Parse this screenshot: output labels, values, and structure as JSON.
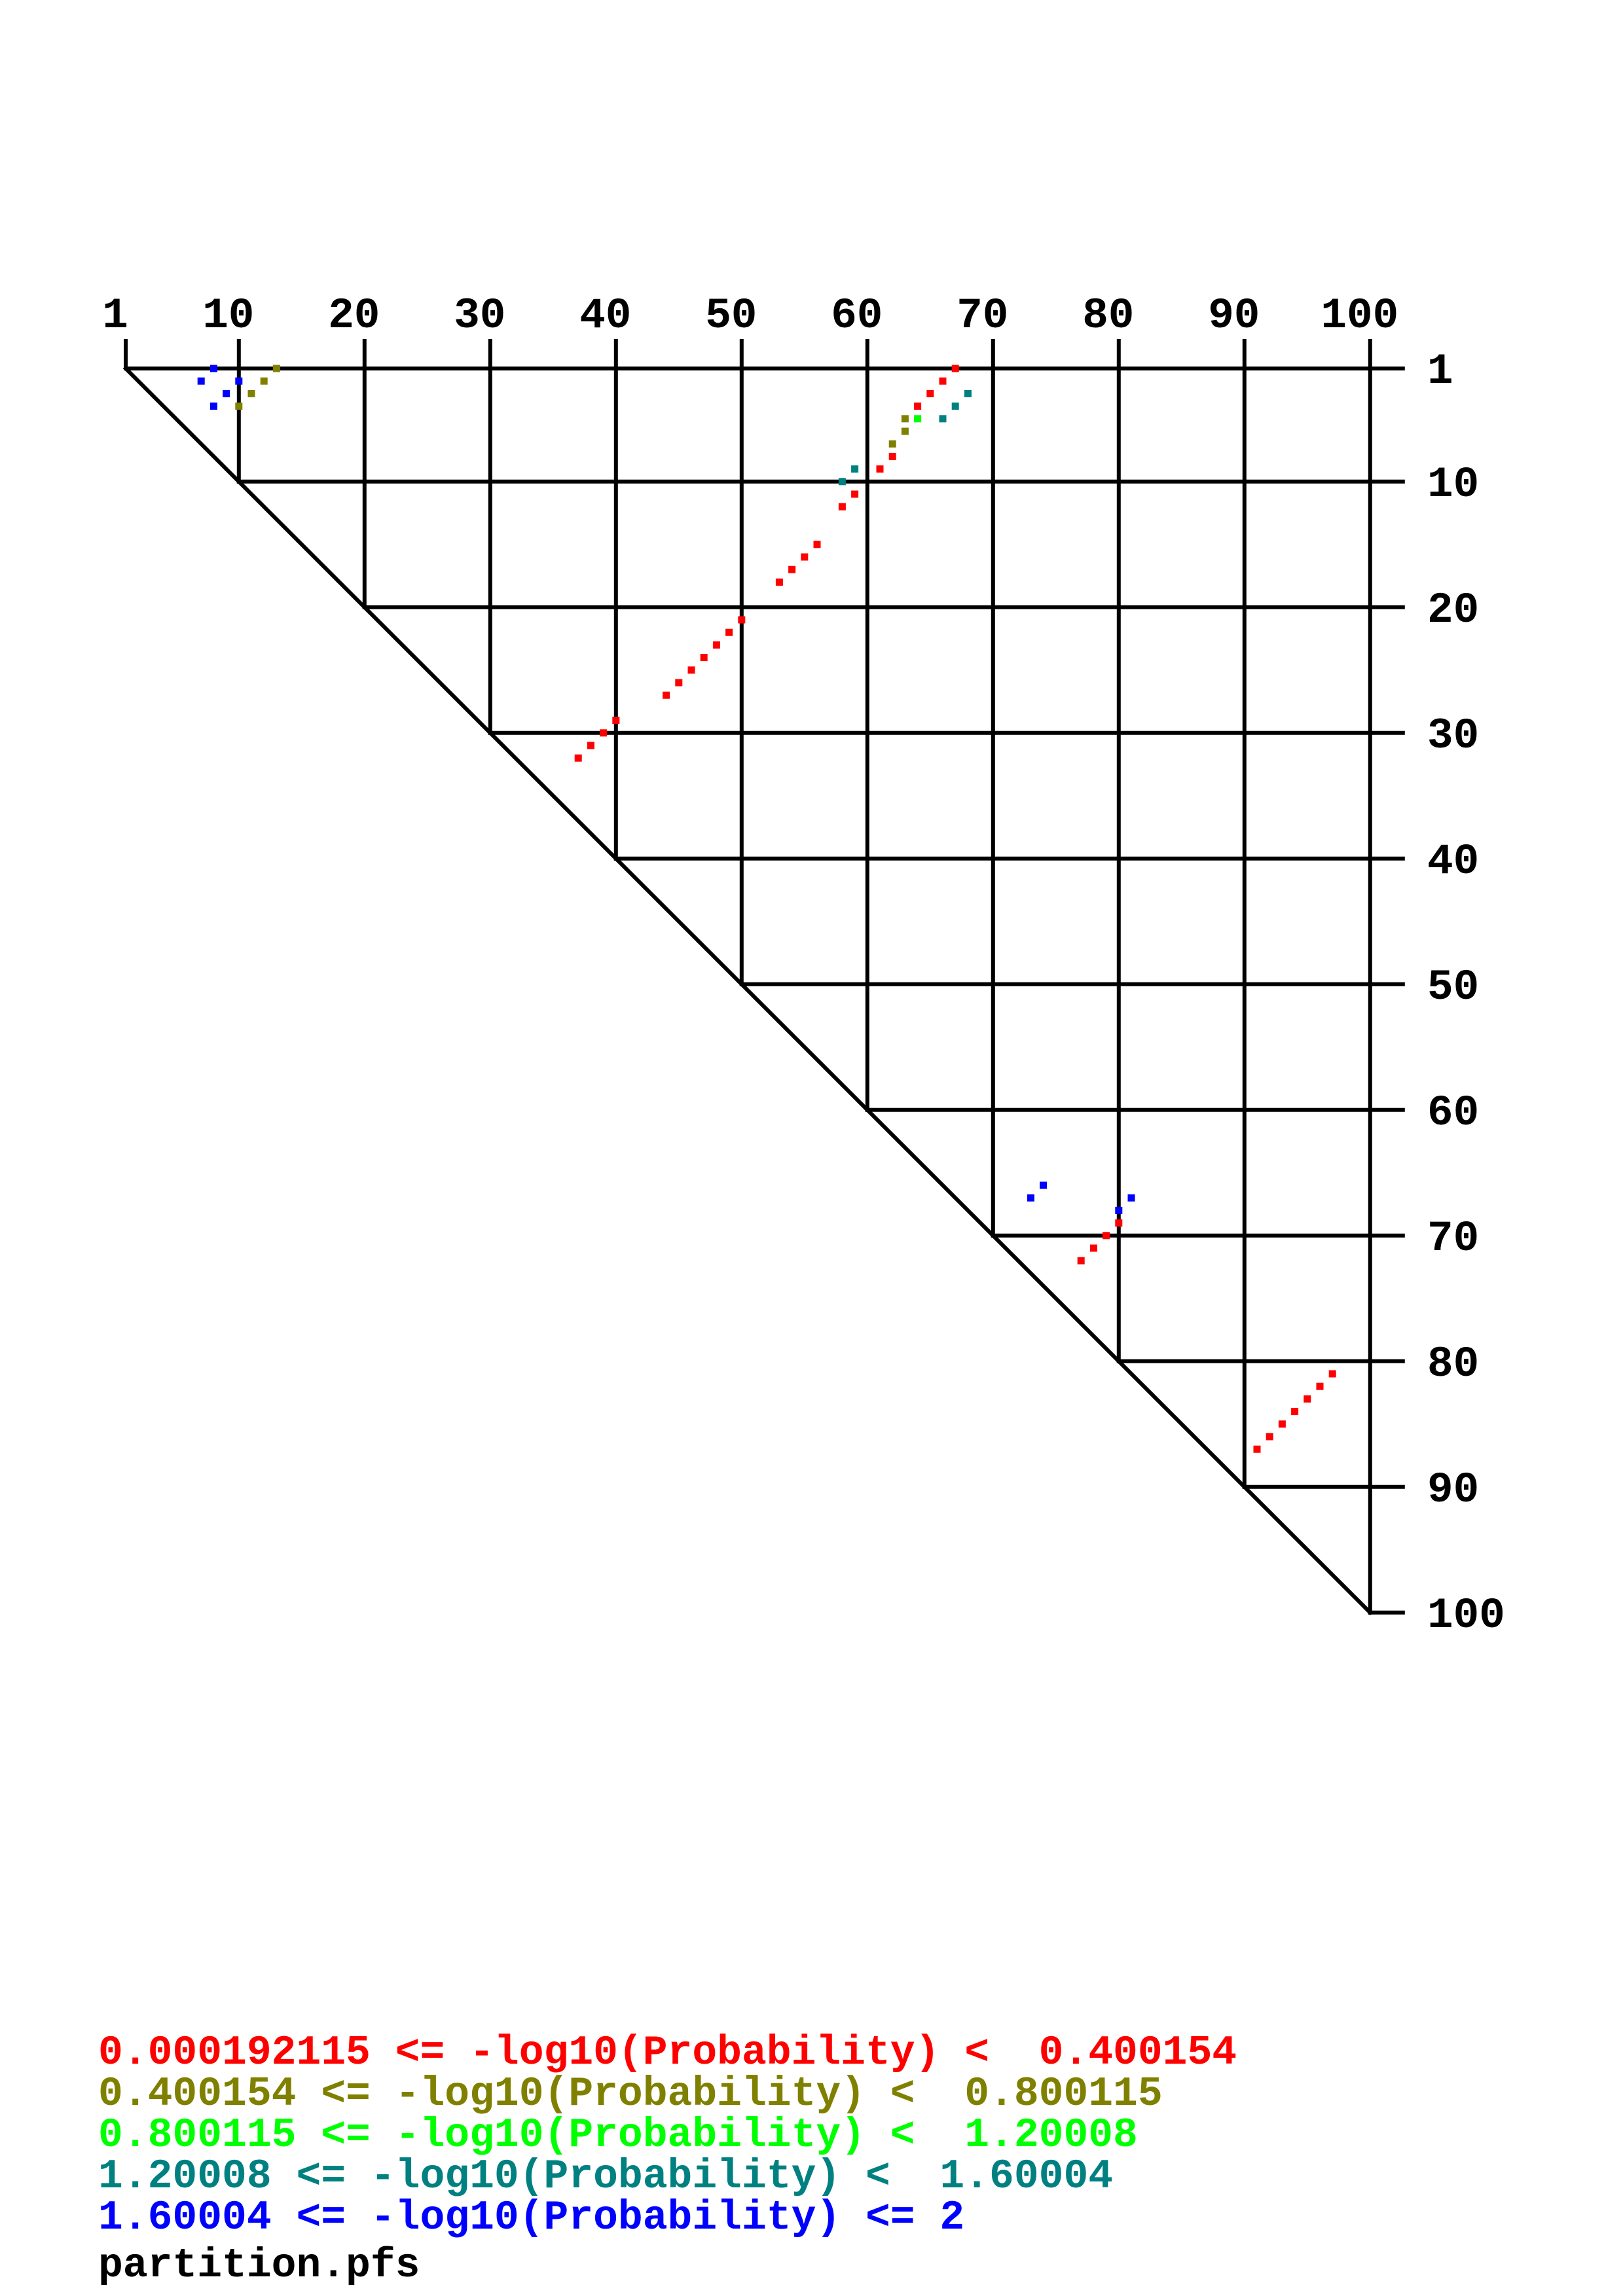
{
  "chart_data": {
    "type": "scatter",
    "subtype": "triangular dot plot",
    "x_axis": {
      "ticks": [
        1,
        10,
        20,
        30,
        40,
        50,
        60,
        70,
        80,
        90,
        100
      ],
      "range": [
        1,
        100
      ],
      "position": "top"
    },
    "y_axis": {
      "ticks": [
        1,
        10,
        20,
        30,
        40,
        50,
        60,
        70,
        80,
        90,
        100
      ],
      "range": [
        1,
        100
      ],
      "position": "right"
    },
    "grid": true,
    "legend_position": "bottom-left",
    "bins": [
      {
        "label": "0.000192115 <= -log10(Probability) <  0.400154",
        "color": "#FF0000"
      },
      {
        "label": "0.400154 <= -log10(Probability) <  0.800115",
        "color": "#808000"
      },
      {
        "label": "0.800115 <= -log10(Probability) <  1.20008",
        "color": "#00FF00"
      },
      {
        "label": "1.20008 <= -log10(Probability) <  1.60004",
        "color": "#008080"
      },
      {
        "label": "1.60004 <= -log10(Probability) <= 2",
        "color": "#0000FF"
      }
    ],
    "points": [
      {
        "i": 1,
        "j": 8,
        "bin": 4
      },
      {
        "i": 2,
        "j": 7,
        "bin": 4
      },
      {
        "i": 2,
        "j": 10,
        "bin": 4
      },
      {
        "i": 3,
        "j": 9,
        "bin": 4
      },
      {
        "i": 4,
        "j": 8,
        "bin": 4
      },
      {
        "i": 66,
        "j": 74,
        "bin": 4
      },
      {
        "i": 67,
        "j": 73,
        "bin": 4
      },
      {
        "i": 67,
        "j": 81,
        "bin": 4
      },
      {
        "i": 68,
        "j": 80,
        "bin": 4
      },
      {
        "i": 1,
        "j": 13,
        "bin": 1
      },
      {
        "i": 2,
        "j": 12,
        "bin": 1
      },
      {
        "i": 3,
        "j": 11,
        "bin": 1
      },
      {
        "i": 4,
        "j": 10,
        "bin": 1
      },
      {
        "i": 5,
        "j": 63,
        "bin": 1
      },
      {
        "i": 6,
        "j": 63,
        "bin": 1
      },
      {
        "i": 7,
        "j": 62,
        "bin": 1
      },
      {
        "i": 5,
        "j": 64,
        "bin": 2
      },
      {
        "i": 5,
        "j": 66,
        "bin": 3
      },
      {
        "i": 4,
        "j": 67,
        "bin": 3
      },
      {
        "i": 3,
        "j": 68,
        "bin": 3
      },
      {
        "i": 9,
        "j": 59,
        "bin": 3
      },
      {
        "i": 10,
        "j": 58,
        "bin": 3
      },
      {
        "i": 1,
        "j": 67,
        "bin": 0
      },
      {
        "i": 2,
        "j": 66,
        "bin": 0
      },
      {
        "i": 3,
        "j": 65,
        "bin": 0
      },
      {
        "i": 4,
        "j": 64,
        "bin": 0
      },
      {
        "i": 8,
        "j": 62,
        "bin": 0
      },
      {
        "i": 9,
        "j": 61,
        "bin": 0
      },
      {
        "i": 11,
        "j": 59,
        "bin": 0
      },
      {
        "i": 12,
        "j": 58,
        "bin": 0
      },
      {
        "i": 15,
        "j": 56,
        "bin": 0
      },
      {
        "i": 16,
        "j": 55,
        "bin": 0
      },
      {
        "i": 17,
        "j": 54,
        "bin": 0
      },
      {
        "i": 18,
        "j": 53,
        "bin": 0
      },
      {
        "i": 21,
        "j": 50,
        "bin": 0
      },
      {
        "i": 22,
        "j": 49,
        "bin": 0
      },
      {
        "i": 23,
        "j": 48,
        "bin": 0
      },
      {
        "i": 24,
        "j": 47,
        "bin": 0
      },
      {
        "i": 25,
        "j": 46,
        "bin": 0
      },
      {
        "i": 26,
        "j": 45,
        "bin": 0
      },
      {
        "i": 27,
        "j": 44,
        "bin": 0
      },
      {
        "i": 29,
        "j": 40,
        "bin": 0
      },
      {
        "i": 30,
        "j": 39,
        "bin": 0
      },
      {
        "i": 31,
        "j": 38,
        "bin": 0
      },
      {
        "i": 32,
        "j": 37,
        "bin": 0
      },
      {
        "i": 69,
        "j": 80,
        "bin": 0
      },
      {
        "i": 70,
        "j": 79,
        "bin": 0
      },
      {
        "i": 71,
        "j": 78,
        "bin": 0
      },
      {
        "i": 72,
        "j": 77,
        "bin": 0
      },
      {
        "i": 81,
        "j": 97,
        "bin": 0
      },
      {
        "i": 82,
        "j": 96,
        "bin": 0
      },
      {
        "i": 83,
        "j": 95,
        "bin": 0
      },
      {
        "i": 84,
        "j": 94,
        "bin": 0
      },
      {
        "i": 85,
        "j": 93,
        "bin": 0
      },
      {
        "i": 86,
        "j": 92,
        "bin": 0
      },
      {
        "i": 87,
        "j": 91,
        "bin": 0
      }
    ],
    "filename": "partition.pfs"
  }
}
